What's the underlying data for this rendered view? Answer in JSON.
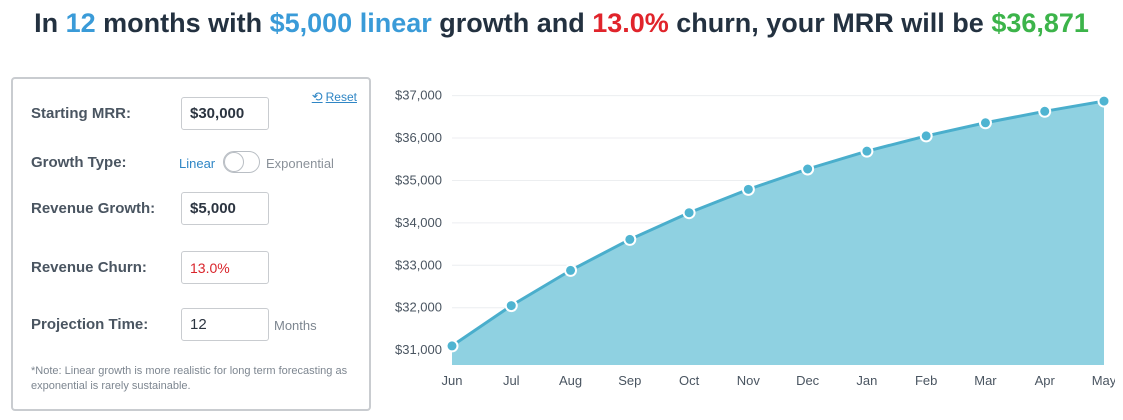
{
  "headline": {
    "p1": "In ",
    "months": "12",
    "p2": " months with ",
    "growth": "$5,000 linear",
    "p3": " growth and ",
    "churn": "13.0%",
    "p4": " churn, your MRR will be ",
    "result": "$36,871"
  },
  "panel": {
    "reset_label": "Reset",
    "starting_mrr": {
      "label": "Starting MRR:",
      "value": "$30,000"
    },
    "growth_type": {
      "label": "Growth Type:",
      "option_left": "Linear",
      "option_right": "Exponential",
      "selected": "Linear"
    },
    "revenue_growth": {
      "label": "Revenue Growth:",
      "value": "$5,000"
    },
    "revenue_churn": {
      "label": "Revenue Churn:",
      "value": "13.0%"
    },
    "projection_time": {
      "label": "Projection Time:",
      "value": "12",
      "units": "Months"
    },
    "note": "*Note: Linear growth is more realistic for long term forecasting as exponential is rarely sustainable."
  },
  "colors": {
    "area_fill": "#8fd1e1",
    "line": "#4aaecc",
    "point_fill": "#4fb4d1",
    "headline_blue": "#3a9bd8",
    "headline_red": "#e0242b",
    "headline_green": "#3cb44a"
  },
  "chart_data": {
    "type": "area",
    "categories": [
      "Jun",
      "Jul",
      "Aug",
      "Sep",
      "Oct",
      "Nov",
      "Dec",
      "Jan",
      "Feb",
      "Mar",
      "Apr",
      "May"
    ],
    "values": [
      31100,
      32050,
      32880,
      33610,
      34240,
      34790,
      35270,
      35690,
      36050,
      36360,
      36630,
      36871
    ],
    "yticks": [
      "$31,000",
      "$32,000",
      "$33,000",
      "$34,000",
      "$35,000",
      "$36,000",
      "$37,000"
    ],
    "ytick_values": [
      31000,
      32000,
      33000,
      34000,
      35000,
      36000,
      37000
    ],
    "ylim": [
      30650,
      37250
    ],
    "grid": true
  }
}
